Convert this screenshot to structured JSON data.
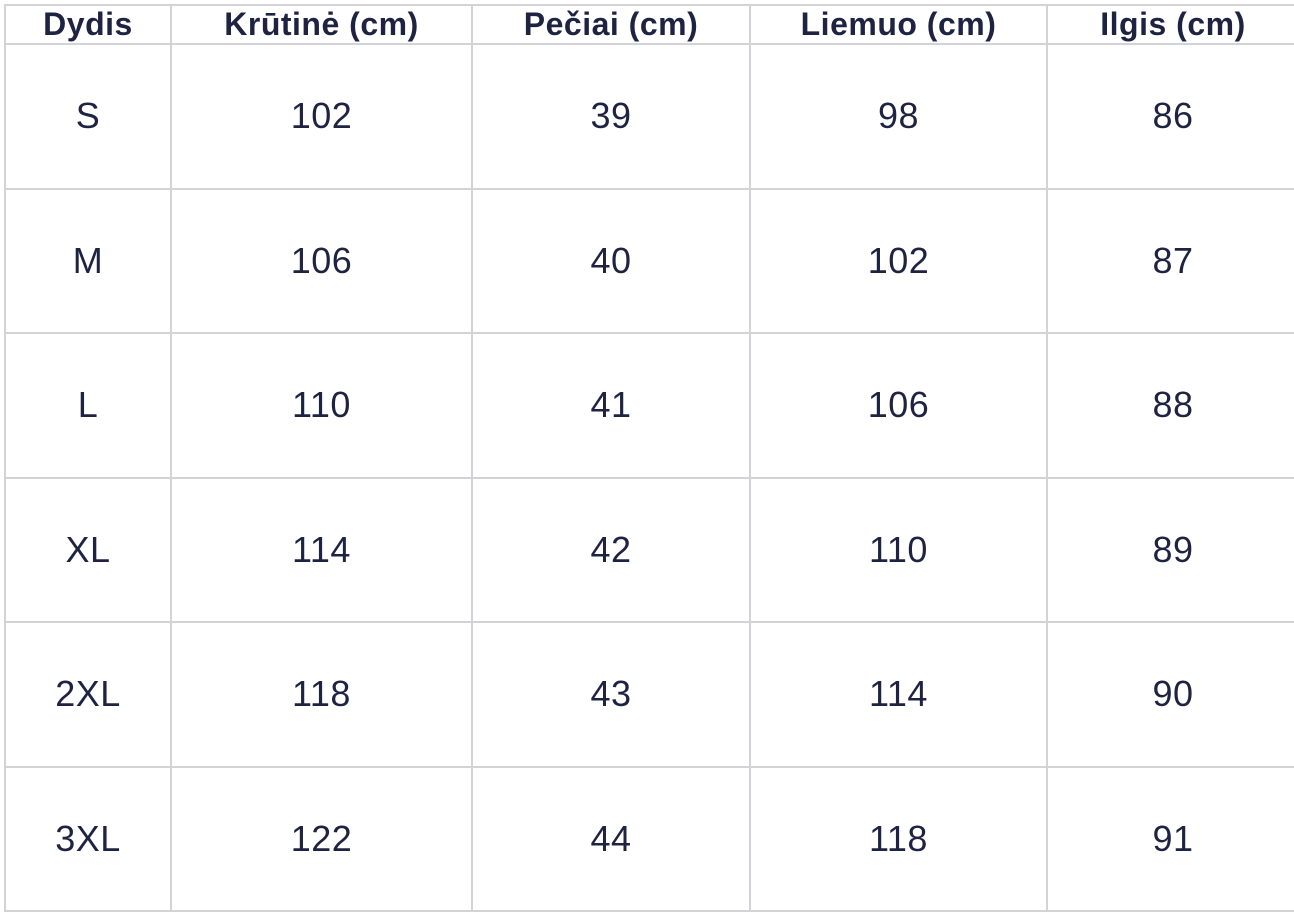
{
  "colors": {
    "text": "#1e2342",
    "border": "#d2d3d9",
    "background": "#ffffff"
  },
  "table": {
    "headers": [
      "Dydis",
      "Krūtinė (cm)",
      "Pečiai (cm)",
      "Liemuo (cm)",
      "Ilgis (cm)"
    ],
    "rows": [
      [
        "S",
        "102",
        "39",
        "98",
        "86"
      ],
      [
        "M",
        "106",
        "40",
        "102",
        "87"
      ],
      [
        "L",
        "110",
        "41",
        "106",
        "88"
      ],
      [
        "XL",
        "114",
        "42",
        "110",
        "89"
      ],
      [
        "2XL",
        "118",
        "43",
        "114",
        "90"
      ],
      [
        "3XL",
        "122",
        "44",
        "118",
        "91"
      ]
    ]
  },
  "chart_data": {
    "type": "table",
    "title": "",
    "columns": [
      "Dydis",
      "Krūtinė (cm)",
      "Pečiai (cm)",
      "Liemuo (cm)",
      "Ilgis (cm)"
    ],
    "rows": [
      {
        "Dydis": "S",
        "Krūtinė (cm)": 102,
        "Pečiai (cm)": 39,
        "Liemuo (cm)": 98,
        "Ilgis (cm)": 86
      },
      {
        "Dydis": "M",
        "Krūtinė (cm)": 106,
        "Pečiai (cm)": 40,
        "Liemuo (cm)": 102,
        "Ilgis (cm)": 87
      },
      {
        "Dydis": "L",
        "Krūtinė (cm)": 110,
        "Pečiai (cm)": 41,
        "Liemuo (cm)": 106,
        "Ilgis (cm)": 88
      },
      {
        "Dydis": "XL",
        "Krūtinė (cm)": 114,
        "Pečiai (cm)": 42,
        "Liemuo (cm)": 110,
        "Ilgis (cm)": 89
      },
      {
        "Dydis": "2XL",
        "Krūtinė (cm)": 118,
        "Pečiai (cm)": 43,
        "Liemuo (cm)": 114,
        "Ilgis (cm)": 90
      },
      {
        "Dydis": "3XL",
        "Krūtinė (cm)": 122,
        "Pečiai (cm)": 44,
        "Liemuo (cm)": 118,
        "Ilgis (cm)": 91
      }
    ]
  }
}
